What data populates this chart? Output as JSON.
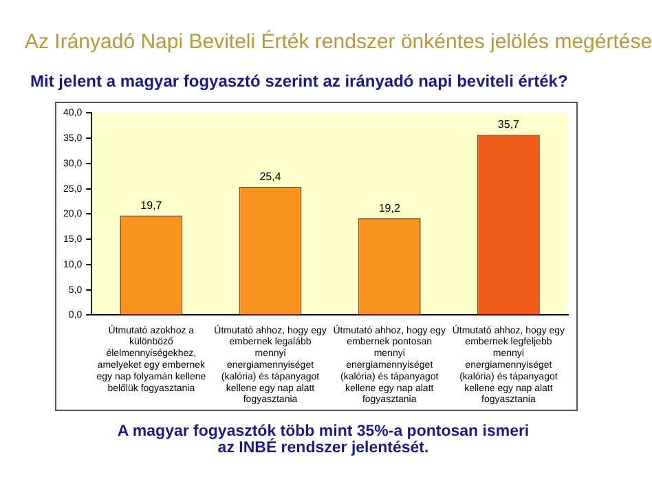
{
  "chart_data": {
    "type": "bar",
    "title": "Az Irányadó Napi Beviteli Érték rendszer önkéntes jelölés  megértése",
    "subtitle": "Mit jelent a magyar fogyasztó szerint az irányadó napi beviteli érték?",
    "categories": [
      "Útmutató azokhoz a különböző élelmennyiségekhez, amelyeket egy embernek egy nap folyamán kellene belőlük fogyasztania",
      "Útmutató ahhoz, hogy egy embernek legalább mennyi energiamennyiséget (kalória) és tápanyagot kellene egy nap alatt fogyasztania",
      "Útmutató ahhoz, hogy egy embernek pontosan mennyi energiamennyiséget (kalória) és tápanyagot kellene egy nap alatt fogyasztania",
      "Útmutató ahhoz, hogy egy embernek legfeljebb mennyi energiamennyiséget (kalória) és tápanyagot kellene egy nap alatt fogyasztania"
    ],
    "values": [
      19.7,
      25.4,
      19.2,
      35.7
    ],
    "value_labels": [
      "19,7",
      "25,4",
      "19,2",
      "35,7"
    ],
    "colors": [
      "#f7931e",
      "#f7931e",
      "#f7931e",
      "#f05a1a"
    ],
    "ylim": [
      0,
      40
    ],
    "yticks": [
      {
        "value": 0,
        "label": "0,0"
      },
      {
        "value": 5,
        "label": "5,0"
      },
      {
        "value": 10,
        "label": "10,0"
      },
      {
        "value": 15,
        "label": "15,0"
      },
      {
        "value": 20,
        "label": "20,0"
      },
      {
        "value": 25,
        "label": "25,0"
      },
      {
        "value": 30,
        "label": "30,0"
      },
      {
        "value": 35,
        "label": "35,0"
      },
      {
        "value": 40,
        "label": "40,0"
      }
    ],
    "grid": false,
    "legend": false,
    "annotations": [
      "A magyar fogyasztók több mint 35%-a pontosan ismeri az INBÉ rendszer jelentését."
    ]
  }
}
